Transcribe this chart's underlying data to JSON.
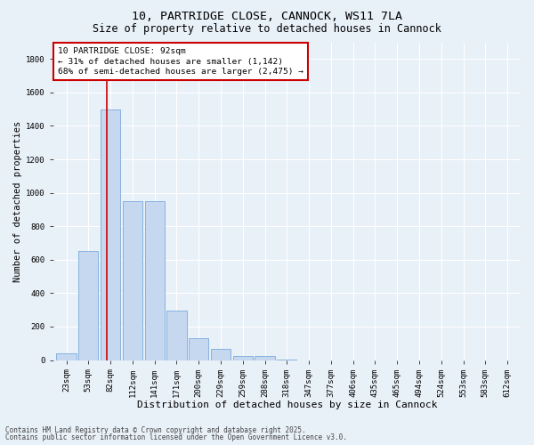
{
  "title_line1": "10, PARTRIDGE CLOSE, CANNOCK, WS11 7LA",
  "title_line2": "Size of property relative to detached houses in Cannock",
  "xlabel": "Distribution of detached houses by size in Cannock",
  "ylabel": "Number of detached properties",
  "bar_color": "#c5d8f0",
  "bar_edge_color": "#7aaadc",
  "background_color": "#e8f0f8",
  "grid_color": "#ffffff",
  "categories": [
    "23sqm",
    "53sqm",
    "82sqm",
    "112sqm",
    "141sqm",
    "171sqm",
    "200sqm",
    "229sqm",
    "259sqm",
    "288sqm",
    "318sqm",
    "347sqm",
    "377sqm",
    "406sqm",
    "435sqm",
    "465sqm",
    "494sqm",
    "524sqm",
    "553sqm",
    "583sqm",
    "612sqm"
  ],
  "values": [
    40,
    650,
    1500,
    950,
    950,
    295,
    130,
    65,
    25,
    25,
    5,
    0,
    0,
    0,
    0,
    0,
    0,
    0,
    0,
    0,
    0
  ],
  "ylim": [
    0,
    1900
  ],
  "yticks": [
    0,
    200,
    400,
    600,
    800,
    1000,
    1200,
    1400,
    1600,
    1800
  ],
  "vline_color": "#cc0000",
  "vline_position": 1.85,
  "annotation_text": "10 PARTRIDGE CLOSE: 92sqm\n← 31% of detached houses are smaller (1,142)\n68% of semi-detached houses are larger (2,475) →",
  "annotation_box_color": "#cc0000",
  "footer_line1": "Contains HM Land Registry data © Crown copyright and database right 2025.",
  "footer_line2": "Contains public sector information licensed under the Open Government Licence v3.0.",
  "title_fontsize": 9.5,
  "subtitle_fontsize": 8.5,
  "xlabel_fontsize": 8,
  "ylabel_fontsize": 7.5,
  "tick_fontsize": 6.5,
  "annotation_fontsize": 6.8,
  "footer_fontsize": 5.5
}
